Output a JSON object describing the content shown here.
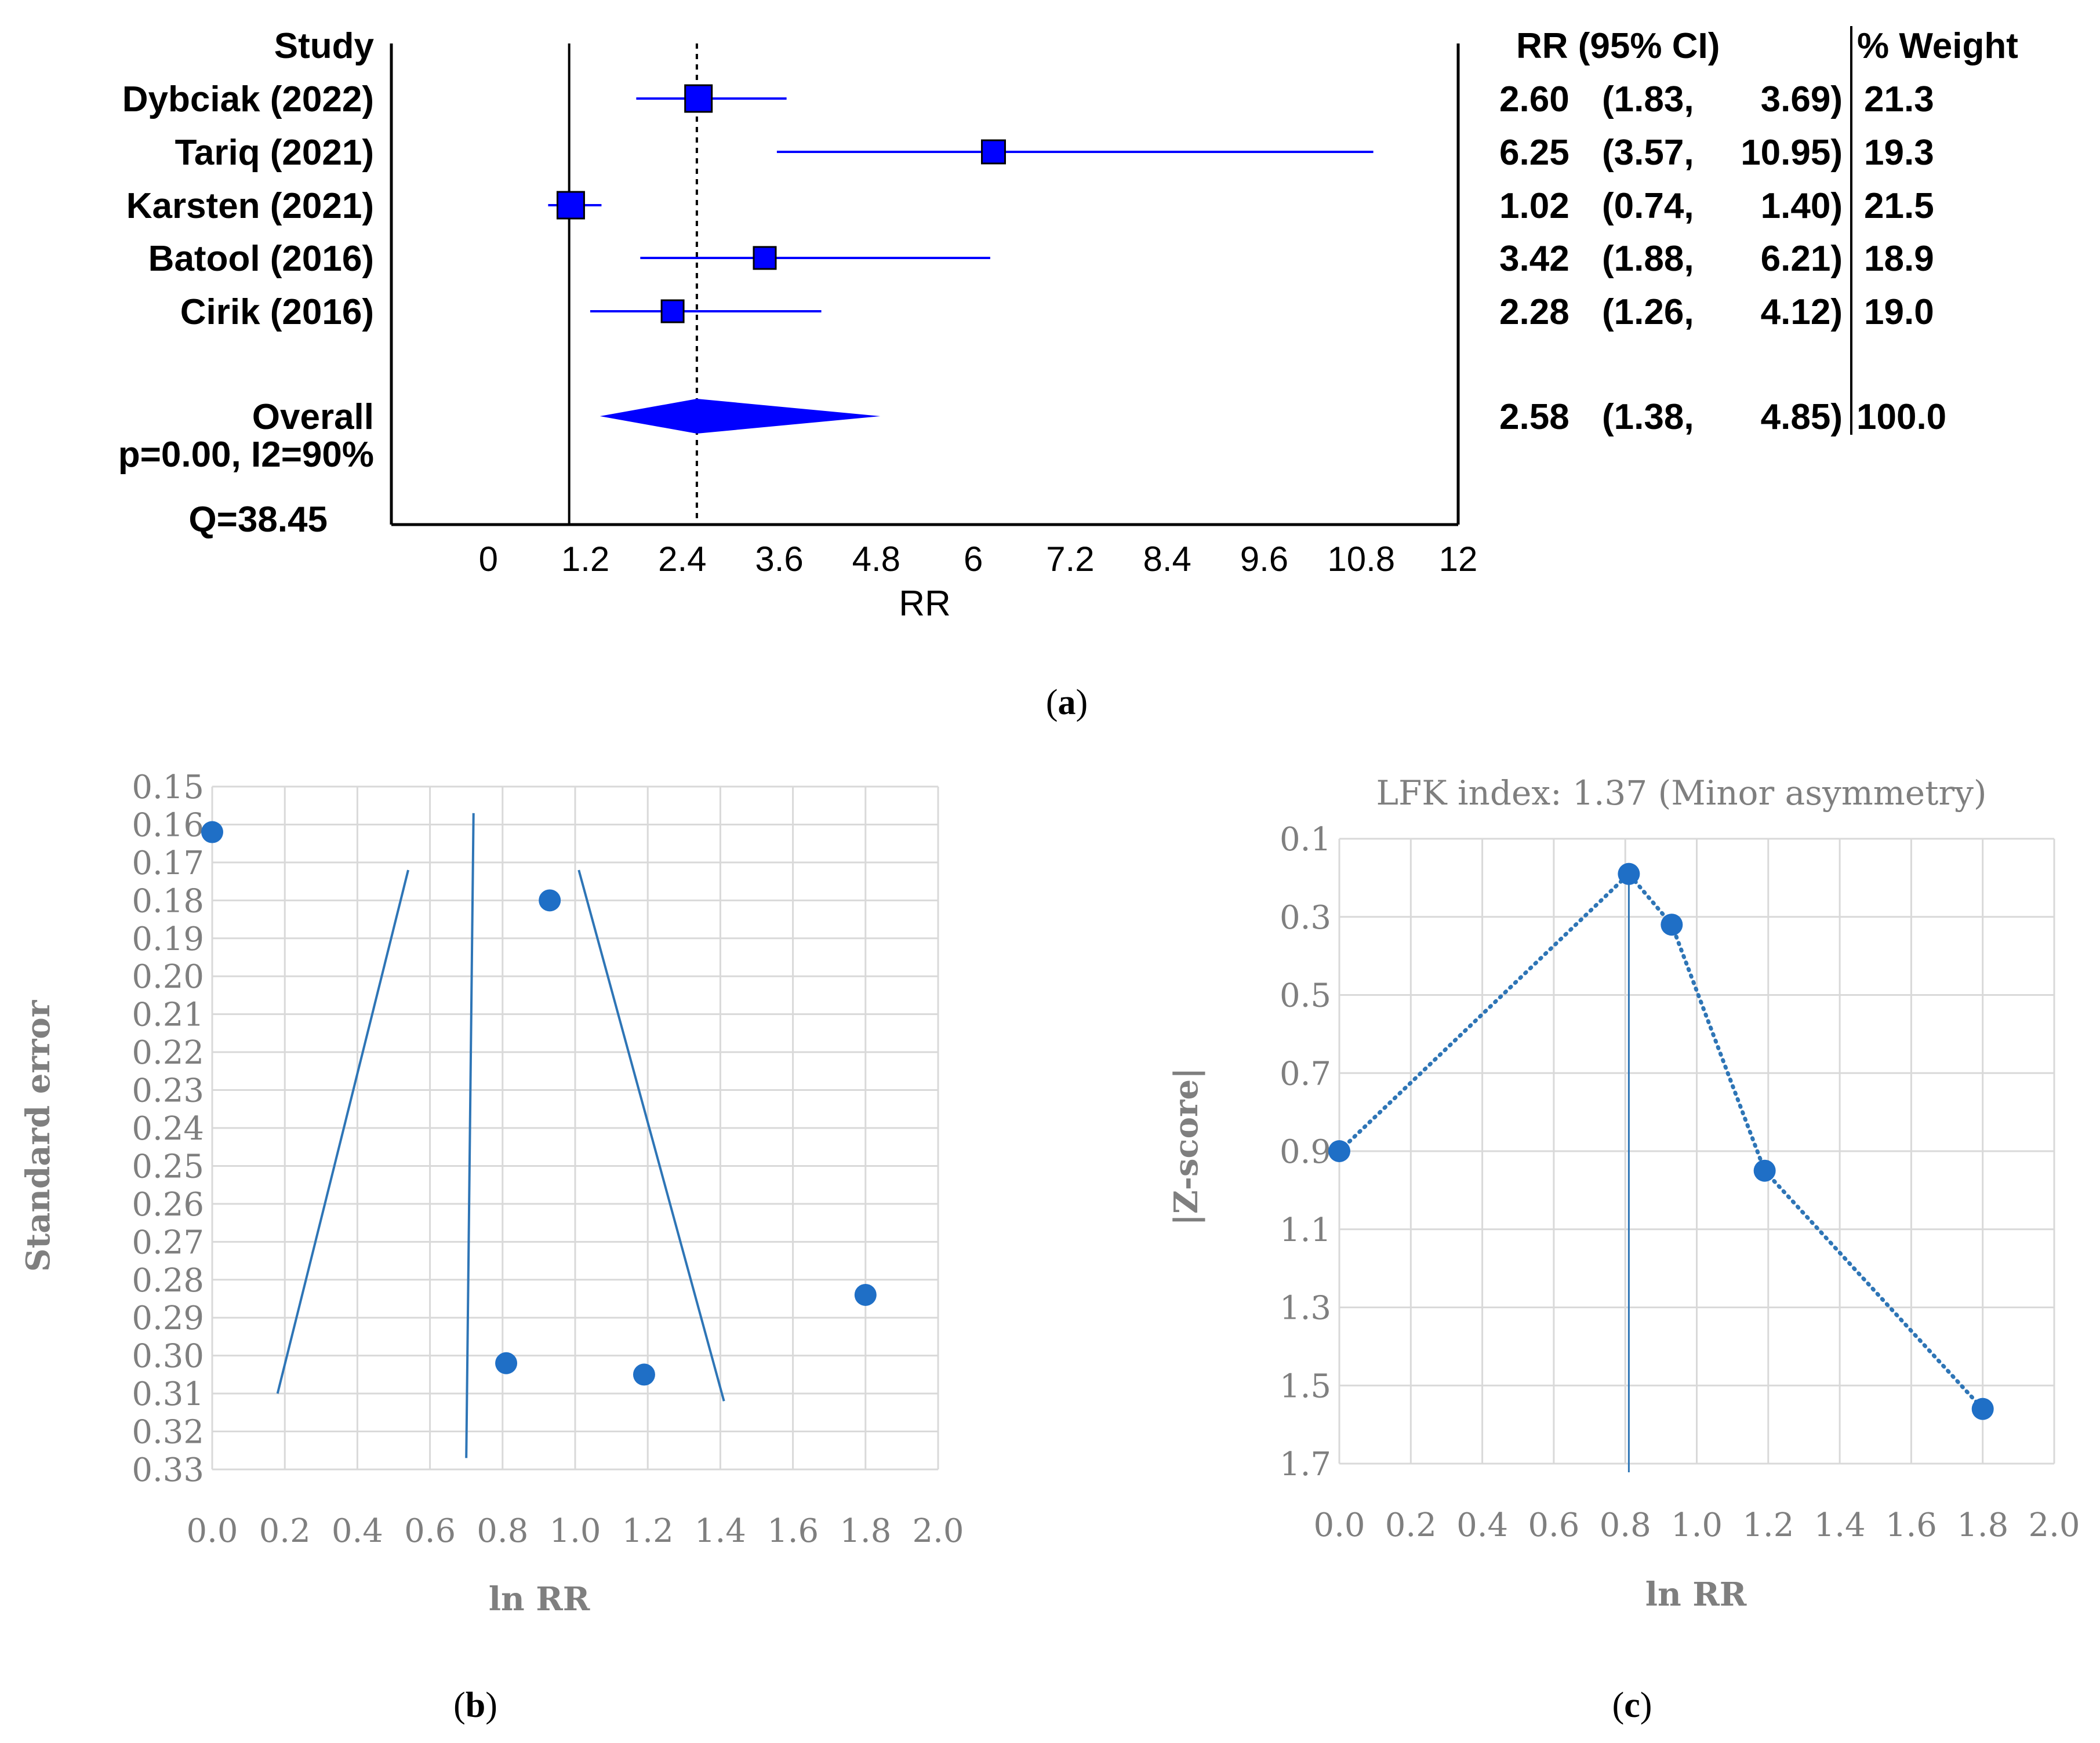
{
  "captions": {
    "a": "(a)",
    "b": "(b)",
    "c": "(c)"
  },
  "caption_parts": {
    "a": {
      "open": "(",
      "letter": "a",
      "close": ")"
    },
    "b": {
      "open": "(",
      "letter": "b",
      "close": ")"
    },
    "c": {
      "open": "(",
      "letter": "c",
      "close": ")"
    }
  },
  "colors": {
    "forest_blue": "#0000ff",
    "marker_blue": "#1f6fc6",
    "line_blue": "#2e75b6",
    "grid": "#d9d9d9",
    "gray_text": "#7f7f7f"
  },
  "chart_data": [
    {
      "id": "a",
      "type": "forest",
      "study_header": "Study",
      "rr_header": "RR (95% CI)",
      "weight_header": "% Weight",
      "xlabel": "RR",
      "xlim": [
        -1.2,
        12
      ],
      "xticks": [
        0,
        1.2,
        2.4,
        3.6,
        4.8,
        6,
        7.2,
        8.4,
        9.6,
        10.8,
        12
      ],
      "xtick_labels": [
        "0",
        "1.2",
        "2.4",
        "3.6",
        "4.8",
        "6",
        "7.2",
        "8.4",
        "9.6",
        "10.8",
        "12"
      ],
      "null_line": 1,
      "pooled_line": 2.58,
      "studies": [
        {
          "label": "Dybciak (2022)",
          "rr": 2.6,
          "lo": 1.83,
          "hi": 3.69,
          "rr_text": "2.60",
          "lo_text": "(1.83,",
          "hi_text": "3.69)",
          "weight": "21.3"
        },
        {
          "label": "Tariq (2021)",
          "rr": 6.25,
          "lo": 3.57,
          "hi": 10.95,
          "rr_text": "6.25",
          "lo_text": "(3.57,",
          "hi_text": "10.95)",
          "weight": "19.3"
        },
        {
          "label": "Karsten (2021)",
          "rr": 1.02,
          "lo": 0.74,
          "hi": 1.4,
          "rr_text": "1.02",
          "lo_text": "(0.74,",
          "hi_text": "1.40)",
          "weight": "21.5"
        },
        {
          "label": "Batool (2016)",
          "rr": 3.42,
          "lo": 1.88,
          "hi": 6.21,
          "rr_text": "3.42",
          "lo_text": "(1.88,",
          "hi_text": "6.21)",
          "weight": "18.9"
        },
        {
          "label": "Cirik (2016)",
          "rr": 2.28,
          "lo": 1.26,
          "hi": 4.12,
          "rr_text": "2.28",
          "lo_text": "(1.26,",
          "hi_text": "4.12)",
          "weight": "19.0"
        }
      ],
      "overall": {
        "label": "Overall",
        "rr": 2.58,
        "lo": 1.38,
        "hi": 4.85,
        "rr_text": "2.58",
        "lo_text": "(1.38,",
        "hi_text": "4.85)",
        "weight": "100.0"
      },
      "heterogeneity_1": "p=0.00, I2=90%",
      "heterogeneity_2": "Q=38.45"
    },
    {
      "id": "b",
      "type": "scatter",
      "title": "",
      "xlabel": "ln RR",
      "ylabel": "Standard error",
      "xlim": [
        0,
        2.0
      ],
      "ylim": [
        0.15,
        0.33
      ],
      "y_reversed": true,
      "grid": true,
      "xtick_labels": [
        "0.0",
        "0.2",
        "0.4",
        "0.6",
        "0.8",
        "1.0",
        "1.2",
        "1.4",
        "1.6",
        "1.8",
        "2.0"
      ],
      "ytick_labels": [
        "0.15",
        "0.16",
        "0.17",
        "0.18",
        "0.19",
        "0.20",
        "0.21",
        "0.22",
        "0.23",
        "0.24",
        "0.25",
        "0.26",
        "0.27",
        "0.28",
        "0.29",
        "0.30",
        "0.31",
        "0.32",
        "0.33"
      ],
      "points": [
        {
          "x": 0.0,
          "y": 0.162
        },
        {
          "x": 0.93,
          "y": 0.18
        },
        {
          "x": 1.8,
          "y": 0.284
        },
        {
          "x": 0.81,
          "y": 0.302
        },
        {
          "x": 1.19,
          "y": 0.305
        }
      ],
      "lines": [
        {
          "name": "pooled",
          "x": [
            0.72,
            0.7
          ],
          "y": [
            0.157,
            0.327
          ]
        },
        {
          "name": "left-limit",
          "x": [
            0.54,
            0.18
          ],
          "y": [
            0.172,
            0.31
          ]
        },
        {
          "name": "right-limit",
          "x": [
            1.01,
            1.41
          ],
          "y": [
            0.172,
            0.312
          ]
        }
      ]
    },
    {
      "id": "c",
      "type": "line",
      "title": "LFK index: 1.37 (Minor asymmetry)",
      "xlabel": "ln RR",
      "ylabel": "|Z-score|",
      "xlim": [
        0,
        2.0
      ],
      "ylim": [
        0.1,
        1.7
      ],
      "y_reversed": true,
      "grid": true,
      "xtick_labels": [
        "0.0",
        "0.2",
        "0.4",
        "0.6",
        "0.8",
        "1.0",
        "1.2",
        "1.4",
        "1.6",
        "1.8",
        "2.0"
      ],
      "ytick_labels": [
        "0.1",
        "0.3",
        "0.5",
        "0.7",
        "0.9",
        "1.1",
        "1.3",
        "1.5",
        "1.7"
      ],
      "points": [
        {
          "x": 0.0,
          "y": 0.9
        },
        {
          "x": 0.81,
          "y": 0.19
        },
        {
          "x": 0.93,
          "y": 0.32
        },
        {
          "x": 1.19,
          "y": 0.95
        },
        {
          "x": 1.8,
          "y": 1.56
        }
      ],
      "vline_x": 0.81
    }
  ]
}
